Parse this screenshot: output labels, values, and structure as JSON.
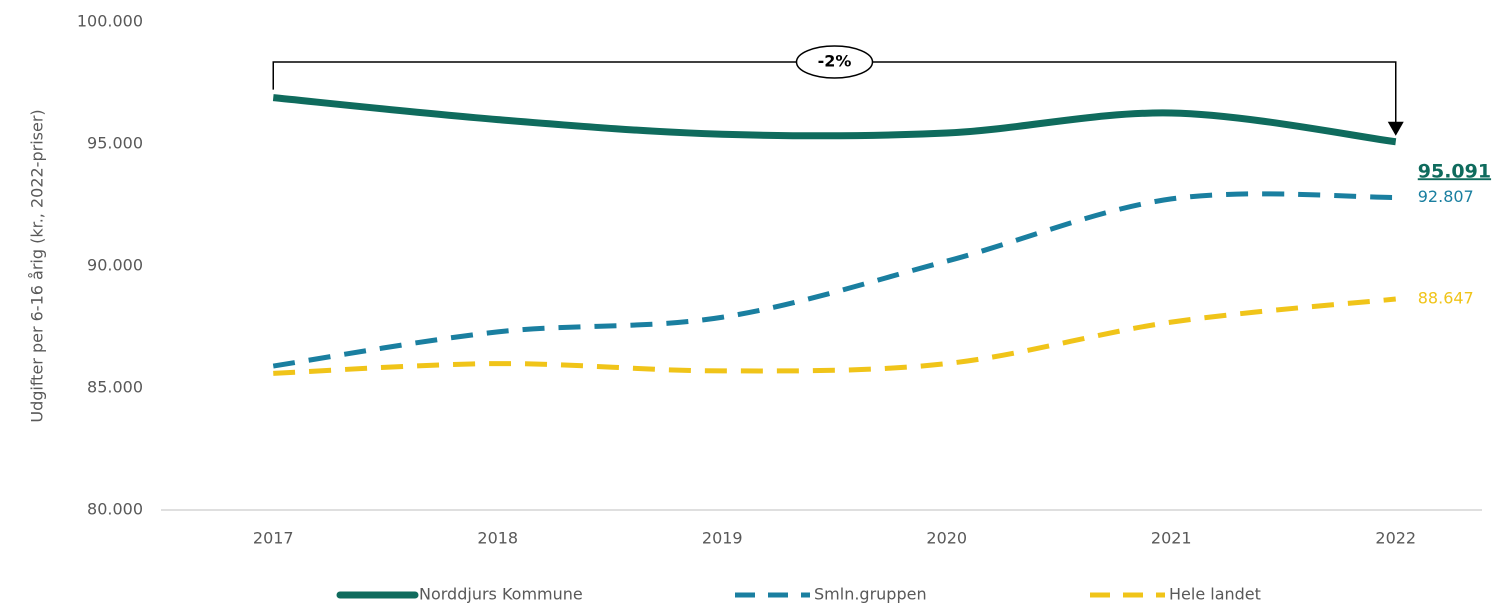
{
  "chart_data": {
    "type": "line",
    "y_label": "Udgifter per 6-16 årig (kr., 2022-priser)",
    "categories": [
      "2017",
      "2018",
      "2019",
      "2020",
      "2021",
      "2022"
    ],
    "series": [
      {
        "name": "Norddjurs Kommune",
        "color": "#0f6b5d",
        "style": "solid",
        "emphasis": true,
        "values": [
          96900,
          96000,
          95400,
          95450,
          96270,
          95091
        ],
        "value_labels": [
          null,
          null,
          null,
          null,
          null,
          "95.091"
        ]
      },
      {
        "name": "Smln.gruppen",
        "color": "#1a7fa0",
        "style": "dashed",
        "values": [
          85900,
          87300,
          87900,
          90200,
          92750,
          92807
        ],
        "value_labels": [
          null,
          null,
          null,
          null,
          null,
          "92.807"
        ]
      },
      {
        "name": "Hele landet",
        "color": "#f0c419",
        "style": "dashed",
        "values": [
          85600,
          86000,
          85700,
          86000,
          87700,
          88647
        ],
        "value_labels": [
          null,
          null,
          null,
          null,
          null,
          "88.647"
        ]
      }
    ],
    "annotation": "-2%",
    "ylim": [
      80000,
      100000
    ],
    "yticks": [
      {
        "value": 80000,
        "label": "80.000"
      },
      {
        "value": 85000,
        "label": "85.000"
      },
      {
        "value": 90000,
        "label": "90.000"
      },
      {
        "value": 95000,
        "label": "95.000"
      },
      {
        "value": 100000,
        "label": "100.000"
      }
    ],
    "grid": false,
    "legend": "bottom"
  }
}
